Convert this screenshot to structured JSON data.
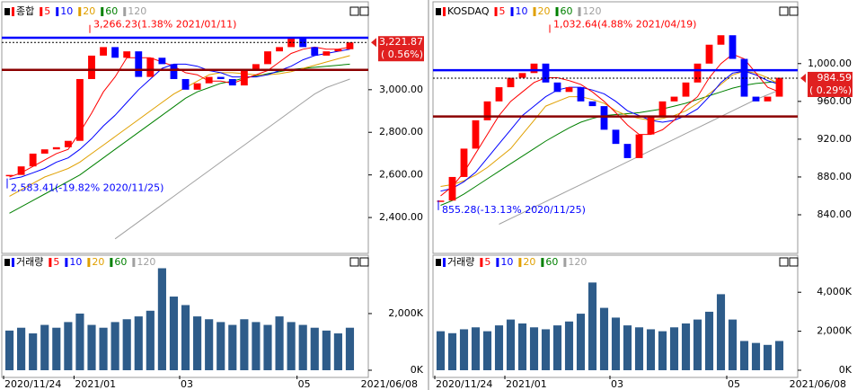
{
  "chart_data": [
    {
      "type": "candlestick",
      "title": "종합",
      "title_color": "#ff0000",
      "values": [
        2600,
        2640,
        2700,
        2720,
        2730,
        2760,
        3050,
        3160,
        3200,
        3150,
        3180,
        3060,
        3150,
        3120,
        3050,
        3000,
        3030,
        3060,
        3050,
        3020,
        3090,
        3120,
        3180,
        3200,
        3240,
        3200,
        3160,
        3180,
        3190,
        3222
      ],
      "up_color": "#ff0000",
      "down_color": "#0000ff",
      "series": [
        {
          "name": "5",
          "color": "#ff0000",
          "values": [
            2590,
            2610,
            2640,
            2670,
            2700,
            2720,
            2800,
            2890,
            2990,
            3060,
            3150,
            3150,
            3150,
            3130,
            3110,
            3080,
            3070,
            3040,
            3040,
            3030,
            3050,
            3070,
            3090,
            3130,
            3170,
            3190,
            3200,
            3190,
            3190,
            3200
          ]
        },
        {
          "name": "10",
          "color": "#0000ff",
          "values": [
            2580,
            2590,
            2610,
            2630,
            2660,
            2680,
            2720,
            2770,
            2830,
            2880,
            2940,
            3000,
            3050,
            3100,
            3120,
            3120,
            3110,
            3090,
            3080,
            3060,
            3060,
            3060,
            3070,
            3090,
            3110,
            3140,
            3160,
            3170,
            3180,
            3190
          ]
        },
        {
          "name": "20",
          "color": "#e0a000",
          "values": [
            2500,
            2530,
            2560,
            2590,
            2610,
            2630,
            2660,
            2700,
            2740,
            2780,
            2820,
            2860,
            2900,
            2940,
            2980,
            3010,
            3040,
            3070,
            3080,
            3080,
            3075,
            3070,
            3070,
            3075,
            3085,
            3100,
            3115,
            3130,
            3145,
            3160
          ]
        },
        {
          "name": "60",
          "color": "#008000",
          "values": [
            2420,
            2450,
            2480,
            2510,
            2540,
            2570,
            2600,
            2640,
            2680,
            2720,
            2760,
            2800,
            2840,
            2880,
            2920,
            2960,
            2990,
            3010,
            3030,
            3040,
            3055,
            3065,
            3075,
            3085,
            3095,
            3100,
            3105,
            3110,
            3115,
            3120
          ]
        },
        {
          "name": "120",
          "color": "#a0a0a0",
          "values": [
            null,
            null,
            null,
            null,
            null,
            null,
            null,
            null,
            null,
            2300,
            2340,
            2380,
            2420,
            2460,
            2500,
            2540,
            2580,
            2620,
            2660,
            2700,
            2740,
            2780,
            2820,
            2860,
            2900,
            2940,
            2980,
            3010,
            3030,
            3050
          ]
        }
      ],
      "ylim": [
        2240,
        3362
      ],
      "yticks": [
        {
          "value": 2400,
          "label": "2,400.00"
        },
        {
          "value": 2600,
          "label": "2,600.00"
        },
        {
          "value": 2800,
          "label": "2,800.00"
        },
        {
          "value": 3000,
          "label": "3,000.00"
        }
      ],
      "hlines": [
        {
          "value": 3244,
          "color": "#0000ff"
        },
        {
          "value": 3093,
          "color": "#8b0000"
        }
      ],
      "current": {
        "value": 3221.87,
        "label": "3,221.87"
      },
      "change": {
        "value": 0.56,
        "label": "( 0.56%)"
      },
      "annotations": [
        {
          "value": 3266.23,
          "label": "3,266.23(1.38% 2021/01/11)",
          "color": "#ff0000"
        },
        {
          "value": 2583.41,
          "label": "2,583.41(-19.82% 2020/11/25)",
          "color": "#0000ff"
        }
      ]
    },
    {
      "type": "bar",
      "title": "거래량",
      "title_color": "#0000ff",
      "legend": [
        {
          "name": "5",
          "color": "#ff0000"
        },
        {
          "name": "10",
          "color": "#0000ff"
        },
        {
          "name": "20",
          "color": "#e0a000"
        },
        {
          "name": "60",
          "color": "#008000"
        },
        {
          "name": "120",
          "color": "#a0a0a0"
        }
      ],
      "categories": [
        "2020/11/24",
        null,
        null,
        null,
        null,
        null,
        "2021/01",
        null,
        null,
        null,
        null,
        null,
        null,
        null,
        null,
        "03",
        null,
        null,
        null,
        null,
        null,
        null,
        null,
        null,
        null,
        "05",
        null,
        null,
        null,
        null
      ],
      "end_label": "2021/06/08",
      "values": [
        1400,
        1500,
        1300,
        1600,
        1500,
        1700,
        2000,
        1600,
        1500,
        1700,
        1800,
        1900,
        2100,
        3600,
        2600,
        2300,
        1900,
        1800,
        1700,
        1600,
        1800,
        1700,
        1600,
        1900,
        1700,
        1600,
        1500,
        1400,
        1300,
        1500
      ],
      "color": "#2e5c8a",
      "ylim": [
        0,
        4060
      ],
      "yticks": [
        {
          "value": 0,
          "label": "0K"
        },
        {
          "value": 2000,
          "label": "2,000K"
        }
      ]
    },
    {
      "type": "candlestick",
      "title": "KOSDAQ",
      "title_color": "#ff0000",
      "values": [
        855,
        880,
        910,
        940,
        960,
        975,
        985,
        990,
        1000,
        980,
        970,
        975,
        960,
        955,
        930,
        915,
        900,
        925,
        945,
        960,
        965,
        980,
        1000,
        1020,
        1030,
        1005,
        965,
        960,
        965,
        985
      ],
      "up_color": "#ff0000",
      "down_color": "#0000ff",
      "series": [
        {
          "name": "5",
          "color": "#ff0000",
          "values": [
            860,
            870,
            885,
            905,
            925,
            945,
            960,
            970,
            980,
            985,
            985,
            982,
            978,
            970,
            960,
            948,
            935,
            925,
            925,
            930,
            940,
            955,
            965,
            985,
            1000,
            1010,
            1005,
            990,
            975,
            970
          ]
        },
        {
          "name": "10",
          "color": "#0000ff",
          "values": [
            865,
            868,
            875,
            885,
            900,
            915,
            930,
            945,
            955,
            965,
            972,
            975,
            975,
            972,
            968,
            960,
            950,
            945,
            940,
            938,
            940,
            945,
            952,
            965,
            980,
            990,
            992,
            988,
            982,
            978
          ]
        },
        {
          "name": "20",
          "color": "#e0a000",
          "values": [
            870,
            872,
            876,
            882,
            890,
            900,
            910,
            925,
            940,
            955,
            960,
            965,
            965,
            962,
            958,
            950,
            945,
            942,
            940,
            942,
            945,
            950,
            958,
            968,
            978,
            988,
            992,
            990,
            985,
            978
          ]
        },
        {
          "name": "60",
          "color": "#008000",
          "values": [
            850,
            855,
            862,
            870,
            878,
            886,
            894,
            902,
            910,
            918,
            925,
            932,
            938,
            942,
            945,
            946,
            947,
            948,
            950,
            952,
            955,
            958,
            962,
            966,
            970,
            974,
            977,
            979,
            980,
            981
          ]
        },
        {
          "name": "120",
          "color": "#a0a0a0",
          "values": [
            null,
            null,
            null,
            null,
            null,
            830,
            836,
            842,
            848,
            854,
            860,
            866,
            872,
            878,
            884,
            890,
            896,
            902,
            908,
            914,
            920,
            926,
            932,
            938,
            944,
            950,
            956,
            962,
            967,
            972
          ]
        }
      ],
      "ylim": [
        801,
        1054
      ],
      "yticks": [
        {
          "value": 840,
          "label": "840.00"
        },
        {
          "value": 880,
          "label": "880.00"
        },
        {
          "value": 920,
          "label": "920.00"
        },
        {
          "value": 960,
          "label": "960.00"
        },
        {
          "value": 1000,
          "label": "1,000.00"
        }
      ],
      "hlines": [
        {
          "value": 993,
          "color": "#0000ff"
        },
        {
          "value": 944,
          "color": "#8b0000"
        }
      ],
      "current": {
        "value": 984.59,
        "label": "984.59"
      },
      "change": {
        "value": 0.29,
        "label": "( 0.29%)"
      },
      "annotations": [
        {
          "value": 1032.64,
          "label": "1,032.64(4.88% 2021/04/19)",
          "color": "#ff0000"
        },
        {
          "value": 855.28,
          "label": "855.28(-13.13% 2020/11/25)",
          "color": "#0000ff"
        }
      ]
    },
    {
      "type": "bar",
      "title": "거래량",
      "title_color": "#0000ff",
      "legend": [
        {
          "name": "5",
          "color": "#ff0000"
        },
        {
          "name": "10",
          "color": "#0000ff"
        },
        {
          "name": "20",
          "color": "#e0a000"
        },
        {
          "name": "60",
          "color": "#008000"
        },
        {
          "name": "120",
          "color": "#a0a0a0"
        }
      ],
      "categories": [
        "2020/11/24",
        null,
        null,
        null,
        null,
        null,
        "2021/01",
        null,
        null,
        null,
        null,
        null,
        null,
        null,
        null,
        "03",
        null,
        null,
        null,
        null,
        null,
        null,
        null,
        null,
        null,
        "05",
        null,
        null,
        null,
        null
      ],
      "end_label": "2021/06/08",
      "values": [
        2000,
        1900,
        2100,
        2200,
        2000,
        2300,
        2600,
        2400,
        2200,
        2100,
        2300,
        2500,
        2900,
        4500,
        3200,
        2700,
        2300,
        2200,
        2100,
        2000,
        2200,
        2400,
        2600,
        3000,
        3900,
        2600,
        1500,
        1400,
        1300,
        1500
      ],
      "color": "#2e5c8a",
      "ylim": [
        0,
        5900
      ],
      "yticks": [
        {
          "value": 0,
          "label": "0K"
        },
        {
          "value": 2000,
          "label": "2,000K"
        },
        {
          "value": 4000,
          "label": "4,000K"
        }
      ]
    }
  ]
}
